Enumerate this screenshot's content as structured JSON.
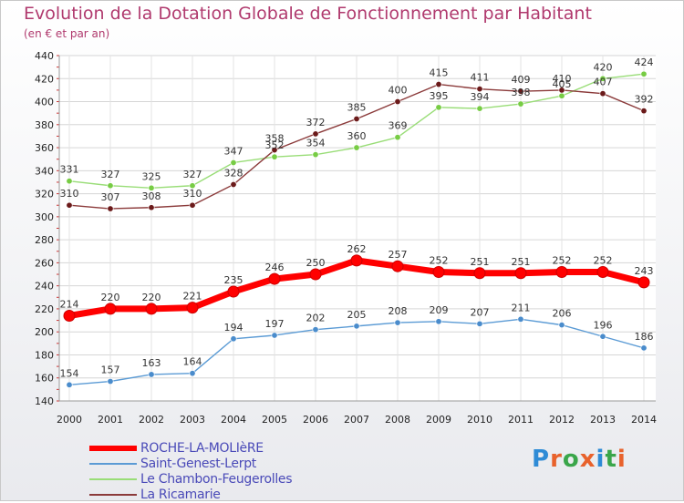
{
  "title": "Evolution de la Dotation Globale de Fonctionnement par Habitant",
  "subtitle": "(en € et par an)",
  "logo": "Proxiti",
  "chart_data": {
    "type": "line",
    "title": "Evolution de la Dotation Globale de Fonctionnement par Habitant",
    "subtitle": "(en € et par an)",
    "xlabel": "",
    "ylabel": "",
    "ylim": [
      140,
      440
    ],
    "yticks": [
      140,
      160,
      180,
      200,
      220,
      240,
      260,
      280,
      300,
      320,
      340,
      360,
      380,
      400,
      420,
      440
    ],
    "grid": true,
    "legend": "bottom-left",
    "x": [
      "2000",
      "2001",
      "2002",
      "2003",
      "2004",
      "2005",
      "2006",
      "2007",
      "2008",
      "2009",
      "2010",
      "2011",
      "2012",
      "2013",
      "2014"
    ],
    "series": [
      {
        "name": "ROCHE-LA-MOLIèRE",
        "color": "#ff0000",
        "marker": "#ff0000",
        "bold": true,
        "values": [
          214,
          220,
          220,
          221,
          235,
          246,
          250,
          262,
          257,
          252,
          251,
          251,
          252,
          252,
          243
        ]
      },
      {
        "name": "Saint-Genest-Lerpt",
        "color": "#5b9bd5",
        "marker": "#4a8ccc",
        "values": [
          154,
          157,
          163,
          164,
          194,
          197,
          202,
          205,
          208,
          209,
          207,
          211,
          206,
          196,
          186
        ]
      },
      {
        "name": "Le Chambon-Feugerolles",
        "color": "#99dd77",
        "marker": "#77cc44",
        "values": [
          331,
          327,
          325,
          327,
          347,
          352,
          354,
          360,
          369,
          395,
          394,
          398,
          405,
          420,
          424
        ]
      },
      {
        "name": "La Ricamarie",
        "color": "#8b3a3a",
        "marker": "#6b1a1a",
        "values": [
          310,
          307,
          308,
          310,
          328,
          358,
          372,
          385,
          400,
          415,
          411,
          409,
          410,
          407,
          392
        ]
      }
    ]
  }
}
